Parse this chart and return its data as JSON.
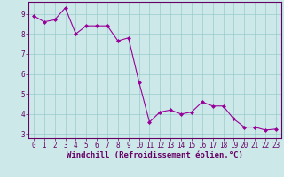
{
  "x": [
    0,
    1,
    2,
    3,
    4,
    5,
    6,
    7,
    8,
    9,
    10,
    11,
    12,
    13,
    14,
    15,
    16,
    17,
    18,
    19,
    20,
    21,
    22,
    23
  ],
  "y": [
    8.9,
    8.6,
    8.7,
    9.3,
    8.0,
    8.4,
    8.4,
    8.4,
    7.65,
    7.8,
    5.6,
    3.6,
    4.1,
    4.2,
    4.0,
    4.1,
    4.6,
    4.4,
    4.4,
    3.75,
    3.35,
    3.35,
    3.2,
    3.25
  ],
  "line_color": "#990099",
  "marker": "D",
  "marker_size": 2,
  "bg_color": "#cce8e8",
  "grid_color": "#99cccc",
  "xlabel": "Windchill (Refroidissement éolien,°C)",
  "ylim": [
    2.8,
    9.6
  ],
  "xlim": [
    -0.5,
    23.5
  ],
  "yticks": [
    3,
    4,
    5,
    6,
    7,
    8,
    9
  ],
  "xticks": [
    0,
    1,
    2,
    3,
    4,
    5,
    6,
    7,
    8,
    9,
    10,
    11,
    12,
    13,
    14,
    15,
    16,
    17,
    18,
    19,
    20,
    21,
    22,
    23
  ],
  "tick_label_fontsize": 5.5,
  "xlabel_fontsize": 6.5,
  "axis_color": "#660066",
  "tick_color": "#660066",
  "spine_color": "#660066",
  "lw": 0.8
}
